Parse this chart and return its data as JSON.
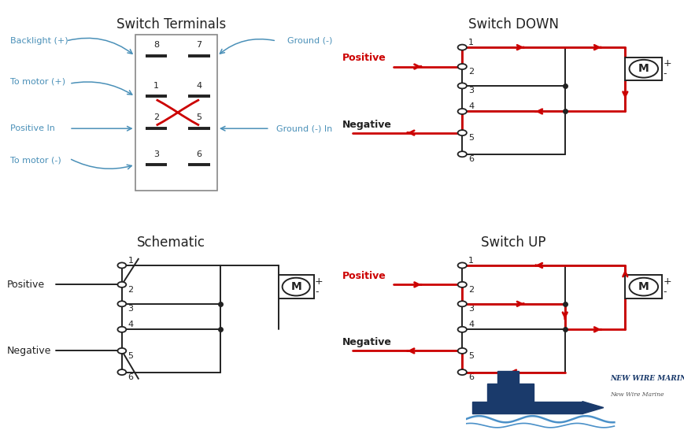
{
  "title_terminals": "Switch Terminals",
  "title_schematic": "Schematic",
  "title_down": "Switch DOWN",
  "title_up": "Switch UP",
  "bg_color": "#ffffff",
  "black": "#222222",
  "red": "#cc0000",
  "blue": "#4a90b8",
  "gray": "#888888",
  "navy": "#1a3a6b"
}
